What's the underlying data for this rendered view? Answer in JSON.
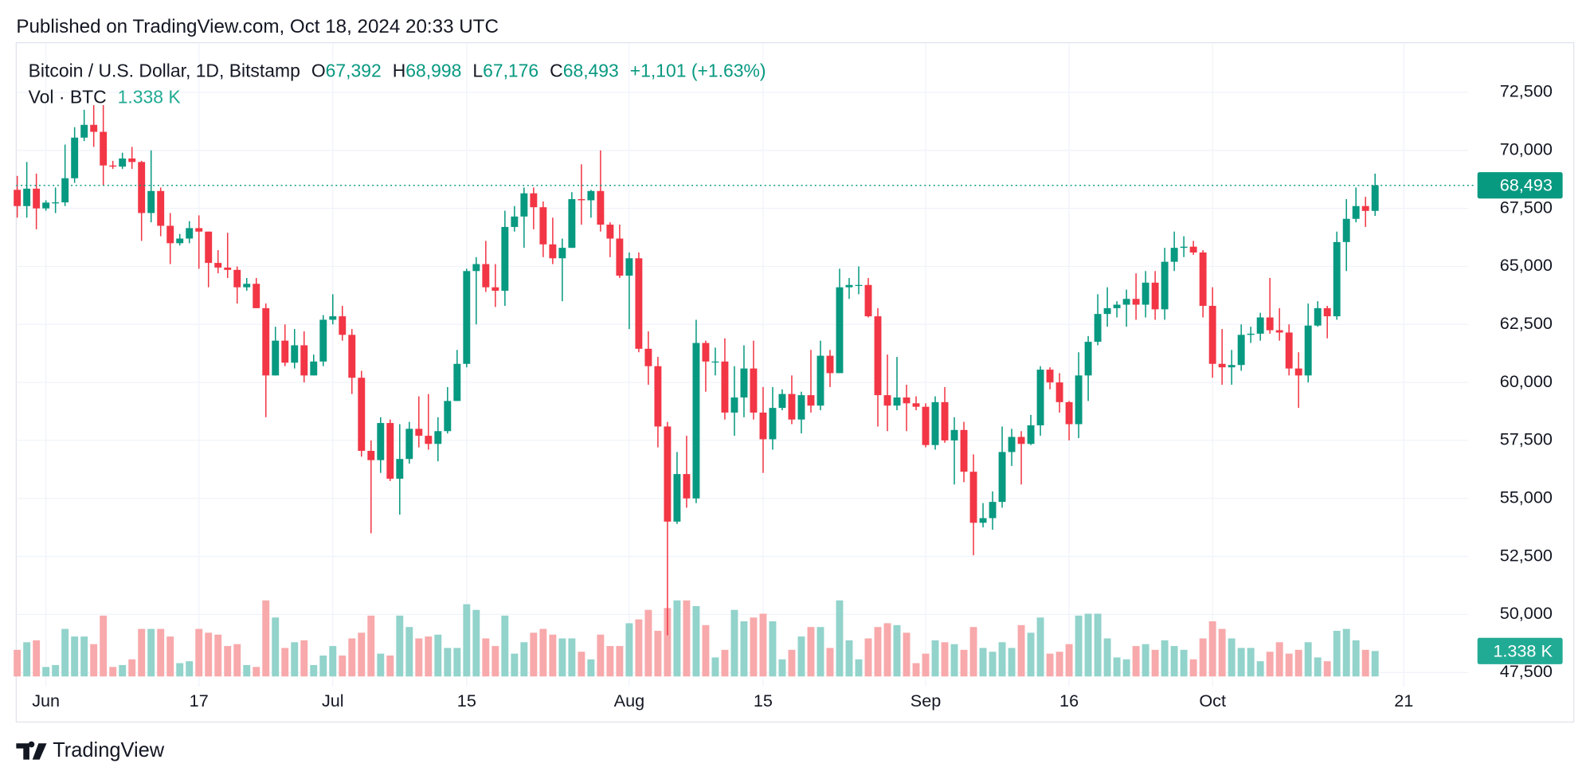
{
  "header": {
    "published": "Published on TradingView.com, Oct 18, 2024 20:33 UTC"
  },
  "footer": {
    "brand": "TradingView"
  },
  "chart_data": {
    "type": "candlestick",
    "symbol": "Bitcoin / U.S. Dollar, 1D, Bitstamp",
    "ohlc_legend": [
      {
        "key": "O",
        "value": "67,392"
      },
      {
        "key": "H",
        "value": "68,998"
      },
      {
        "key": "L",
        "value": "67,176"
      },
      {
        "key": "C",
        "value": "68,493"
      }
    ],
    "change": "+1,101 (+1.63%)",
    "volume_legend": {
      "name": "Vol · BTC",
      "value": "1.338 K"
    },
    "x": [
      "05-29",
      "05-30",
      "05-31",
      "06-01",
      "06-02",
      "06-03",
      "06-04",
      "06-05",
      "06-06",
      "06-07",
      "06-08",
      "06-09",
      "06-10",
      "06-11",
      "06-12",
      "06-13",
      "06-14",
      "06-15",
      "06-16",
      "06-17",
      "06-18",
      "06-19",
      "06-20",
      "06-21",
      "06-22",
      "06-23",
      "06-24",
      "06-25",
      "06-26",
      "06-27",
      "06-28",
      "06-29",
      "06-30",
      "07-01",
      "07-02",
      "07-03",
      "07-04",
      "07-05",
      "07-06",
      "07-07",
      "07-08",
      "07-09",
      "07-10",
      "07-11",
      "07-12",
      "07-13",
      "07-14",
      "07-15",
      "07-16",
      "07-17",
      "07-18",
      "07-19",
      "07-20",
      "07-21",
      "07-22",
      "07-23",
      "07-24",
      "07-25",
      "07-26",
      "07-27",
      "07-28",
      "07-29",
      "07-30",
      "07-31",
      "08-01",
      "08-02",
      "08-03",
      "08-04",
      "08-05",
      "08-06",
      "08-07",
      "08-08",
      "08-09",
      "08-10",
      "08-11",
      "08-12",
      "08-13",
      "08-14",
      "08-15",
      "08-16",
      "08-17",
      "08-18",
      "08-19",
      "08-20",
      "08-21",
      "08-22",
      "08-23",
      "08-24",
      "08-25",
      "08-26",
      "08-27",
      "08-28",
      "08-29",
      "08-30",
      "08-31",
      "09-01",
      "09-02",
      "09-03",
      "09-04",
      "09-05",
      "09-06",
      "09-07",
      "09-08",
      "09-09",
      "09-10",
      "09-11",
      "09-12",
      "09-13",
      "09-14",
      "09-15",
      "09-16",
      "09-17",
      "09-18",
      "09-19",
      "09-20",
      "09-21",
      "09-22",
      "09-23",
      "09-24",
      "09-25",
      "09-26",
      "09-27",
      "09-28",
      "09-29",
      "09-30",
      "10-01",
      "10-02",
      "10-03",
      "10-04",
      "10-05",
      "10-06",
      "10-07",
      "10-08",
      "10-09",
      "10-10",
      "10-11",
      "10-12",
      "10-13",
      "10-14",
      "10-15",
      "10-16",
      "10-17",
      "10-18"
    ],
    "open": [
      68300,
      67600,
      68350,
      67500,
      67750,
      67760,
      68800,
      70550,
      71100,
      70800,
      69350,
      69300,
      69650,
      69500,
      67300,
      68250,
      66750,
      66000,
      66200,
      66650,
      66500,
      65150,
      64950,
      64850,
      64100,
      64250,
      63200,
      60300,
      61800,
      60850,
      61600,
      60300,
      60900,
      62700,
      62850,
      62050,
      60200,
      57050,
      56650,
      58250,
      55850,
      56700,
      58000,
      57700,
      57350,
      57900,
      59200,
      60800,
      64800,
      65100,
      64100,
      63950,
      66700,
      67150,
      68150,
      67550,
      65950,
      65350,
      65800,
      67900,
      67850,
      68250,
      66800,
      66200,
      64600,
      65350,
      61450,
      60700,
      58100,
      54000,
      56050,
      55000,
      61700,
      60900,
      60900,
      58700,
      59350,
      60600,
      58700,
      57550,
      58900,
      59500,
      58400,
      59450,
      59000,
      61150,
      60400,
      64100,
      64200,
      64200,
      62850,
      59450,
      59000,
      59350,
      59100,
      58950,
      57300,
      59150,
      57500,
      57950,
      56150,
      53950,
      54150,
      54850,
      57000,
      57650,
      57350,
      58150,
      60550,
      60000,
      59150,
      58200,
      60300,
      61750,
      62950,
      63200,
      63350,
      63600,
      63350,
      64300,
      63150,
      65200,
      65800,
      65850,
      65600,
      63300,
      60800,
      60650,
      60750,
      62050,
      62100,
      62800,
      62250,
      62150,
      60600,
      60300,
      62450,
      63200,
      62850,
      66050,
      67050,
      67600,
      67392
    ],
    "high": [
      68900,
      69500,
      69000,
      67850,
      68400,
      70250,
      71000,
      71750,
      71950,
      71950,
      69550,
      69900,
      70150,
      69550,
      70000,
      68400,
      67300,
      66400,
      66950,
      67200,
      66500,
      65700,
      66450,
      65000,
      64500,
      64500,
      63400,
      62400,
      62500,
      62300,
      62200,
      61200,
      62900,
      63800,
      63300,
      62300,
      60500,
      57500,
      58500,
      58400,
      58200,
      58300,
      59400,
      59500,
      58500,
      59800,
      61400,
      64900,
      65400,
      66100,
      65100,
      67400,
      67600,
      68400,
      68400,
      67800,
      67100,
      66200,
      68200,
      69400,
      68300,
      70000,
      66900,
      66800,
      65600,
      65600,
      62200,
      61100,
      58300,
      57000,
      57700,
      62700,
      61800,
      61500,
      61900,
      60700,
      61600,
      61800,
      59800,
      59800,
      59700,
      60300,
      59600,
      61400,
      61800,
      61400,
      64900,
      64500,
      65000,
      64500,
      63200,
      61200,
      61100,
      59900,
      59400,
      59100,
      59400,
      59800,
      58500,
      58300,
      56900,
      54800,
      55300,
      58100,
      58000,
      57900,
      58600,
      60700,
      60650,
      60400,
      59200,
      61300,
      62000,
      63800,
      64100,
      63500,
      64000,
      64700,
      64800,
      64800,
      65800,
      66500,
      66300,
      66100,
      65700,
      64100,
      62300,
      61400,
      62500,
      62400,
      63000,
      64500,
      63200,
      62500,
      61300,
      63400,
      63500,
      63300,
      66500,
      67900,
      68400,
      68000,
      68998
    ],
    "low": [
      67100,
      67100,
      66600,
      67400,
      67300,
      67600,
      68600,
      70400,
      70150,
      68500,
      69200,
      69200,
      69200,
      66100,
      66900,
      66300,
      65100,
      65900,
      66000,
      64900,
      64100,
      64700,
      64500,
      63400,
      63950,
      63200,
      58500,
      60300,
      60700,
      60600,
      60000,
      60300,
      60700,
      62500,
      61800,
      59500,
      56800,
      53500,
      56100,
      55750,
      54300,
      56500,
      57200,
      57100,
      56600,
      57800,
      59200,
      60650,
      62500,
      63900,
      63250,
      63300,
      66500,
      65800,
      66600,
      65400,
      65100,
      63500,
      65800,
      66800,
      67100,
      66500,
      65400,
      64500,
      62300,
      61300,
      59900,
      57200,
      49100,
      53900,
      54600,
      54800,
      59600,
      60300,
      58400,
      57700,
      58500,
      58400,
      56100,
      57100,
      58800,
      58200,
      57800,
      58700,
      58800,
      59800,
      60400,
      63600,
      63800,
      62800,
      58100,
      57900,
      58800,
      57900,
      58800,
      57200,
      57100,
      57400,
      55600,
      55700,
      52550,
      53750,
      53650,
      54600,
      56400,
      55600,
      57300,
      57700,
      59700,
      58700,
      57500,
      57600,
      59200,
      61600,
      62400,
      62800,
      62400,
      62700,
      62800,
      62700,
      62700,
      64800,
      65400,
      65500,
      62800,
      60200,
      59900,
      59900,
      60500,
      61700,
      61800,
      62100,
      61800,
      60300,
      58900,
      60000,
      62400,
      61900,
      62700,
      64800,
      66900,
      66700,
      67176
    ],
    "close": [
      67600,
      68350,
      67500,
      67750,
      67760,
      68800,
      70550,
      71100,
      70800,
      69350,
      69300,
      69650,
      69500,
      67300,
      68250,
      66750,
      66000,
      66200,
      66650,
      66500,
      65150,
      64950,
      64850,
      64100,
      64250,
      63200,
      60300,
      61800,
      60850,
      61600,
      60300,
      60900,
      62700,
      62850,
      62050,
      60200,
      57050,
      56650,
      58250,
      55850,
      56700,
      58000,
      57700,
      57350,
      57900,
      59200,
      60800,
      64800,
      65100,
      64100,
      63950,
      66700,
      67150,
      68150,
      67550,
      65950,
      65350,
      65800,
      67900,
      67850,
      68250,
      66800,
      66200,
      64600,
      65350,
      61450,
      60700,
      58100,
      54000,
      56050,
      55000,
      61700,
      60900,
      60900,
      58700,
      59350,
      60600,
      58700,
      57550,
      58900,
      59500,
      58400,
      59450,
      59000,
      61150,
      60400,
      64100,
      64200,
      64200,
      62850,
      59450,
      59000,
      59350,
      59100,
      58950,
      57300,
      59150,
      57500,
      57950,
      56150,
      53950,
      54150,
      54850,
      57000,
      57650,
      57350,
      58150,
      60550,
      60000,
      59150,
      58200,
      60300,
      61750,
      62950,
      63200,
      63350,
      63600,
      63350,
      64300,
      63150,
      65200,
      65800,
      65850,
      65600,
      63300,
      60800,
      60650,
      60750,
      62050,
      62100,
      62800,
      62250,
      62150,
      60600,
      60300,
      62450,
      63200,
      62850,
      66050,
      67050,
      67600,
      67392,
      68493
    ],
    "volume": [
      1.4,
      1.8,
      1.9,
      0.5,
      0.6,
      2.5,
      2.1,
      2.1,
      1.7,
      3.2,
      0.5,
      0.6,
      0.9,
      2.5,
      2.5,
      2.5,
      2.1,
      0.7,
      0.8,
      2.5,
      2.3,
      2.2,
      1.6,
      1.7,
      0.6,
      0.5,
      4.0,
      3.1,
      1.5,
      1.8,
      1.9,
      0.6,
      1.1,
      1.6,
      1.1,
      2.0,
      2.3,
      3.2,
      1.2,
      1.1,
      3.2,
      2.6,
      2.0,
      2.1,
      2.2,
      1.5,
      1.5,
      3.8,
      3.5,
      2.0,
      1.6,
      3.2,
      1.2,
      1.8,
      2.3,
      2.5,
      2.2,
      2.0,
      2.0,
      1.3,
      0.9,
      2.2,
      1.6,
      1.6,
      2.8,
      3.0,
      3.5,
      2.4,
      3.6,
      4.0,
      4.0,
      3.7,
      2.7,
      1.0,
      1.4,
      3.5,
      2.9,
      3.1,
      3.3,
      2.9,
      0.9,
      1.4,
      2.1,
      2.6,
      2.6,
      1.5,
      4.0,
      1.9,
      0.9,
      2.0,
      2.6,
      2.8,
      2.7,
      2.3,
      0.7,
      1.2,
      1.9,
      1.8,
      1.7,
      1.4,
      2.6,
      1.5,
      1.3,
      1.8,
      1.5,
      2.7,
      2.3,
      3.1,
      1.2,
      1.3,
      1.7,
      3.2,
      3.3,
      3.3,
      2.0,
      1.0,
      0.9,
      1.6,
      1.7,
      1.4,
      1.9,
      1.6,
      1.4,
      0.9,
      2.0,
      2.9,
      2.5,
      2.0,
      1.5,
      1.5,
      0.8,
      1.3,
      1.8,
      1.2,
      1.4,
      1.8,
      1.0,
      0.8,
      2.4,
      2.5,
      1.9,
      1.4,
      1.338
    ],
    "up_color": "#089981",
    "down_color": "#f23645",
    "volume_up_color": "#92d3cb",
    "volume_down_color": "#f8a9ab",
    "volume_label_color": "#22ab94",
    "ylim": [
      46890,
      74640
    ],
    "yticks": [
      {
        "value": 47500,
        "label": "47,500"
      },
      {
        "value": 50000,
        "label": "50,000"
      },
      {
        "value": 52500,
        "label": "52,500"
      },
      {
        "value": 55000,
        "label": "55,000"
      },
      {
        "value": 57500,
        "label": "57,500"
      },
      {
        "value": 60000,
        "label": "60,000"
      },
      {
        "value": 62500,
        "label": "62,500"
      },
      {
        "value": 65000,
        "label": "65,000"
      },
      {
        "value": 67500,
        "label": "67,500"
      },
      {
        "value": 70000,
        "label": "70,000"
      },
      {
        "value": 72500,
        "label": "72,500"
      }
    ],
    "xticks": [
      {
        "value": "06-01",
        "label": "Jun"
      },
      {
        "value": "06-17",
        "label": "17"
      },
      {
        "value": "07-01",
        "label": "Jul"
      },
      {
        "value": "07-15",
        "label": "15"
      },
      {
        "value": "08-01",
        "label": "Aug"
      },
      {
        "value": "08-15",
        "label": "15"
      },
      {
        "value": "09-01",
        "label": "Sep"
      },
      {
        "value": "09-16",
        "label": "16"
      },
      {
        "value": "10-01",
        "label": "Oct"
      },
      {
        "value": "10-21",
        "label": "21"
      }
    ],
    "last_price": {
      "value": 68493,
      "label": "68,493"
    },
    "last_volume": {
      "value": 1.338,
      "label": "1.338 K"
    },
    "grid": true
  }
}
